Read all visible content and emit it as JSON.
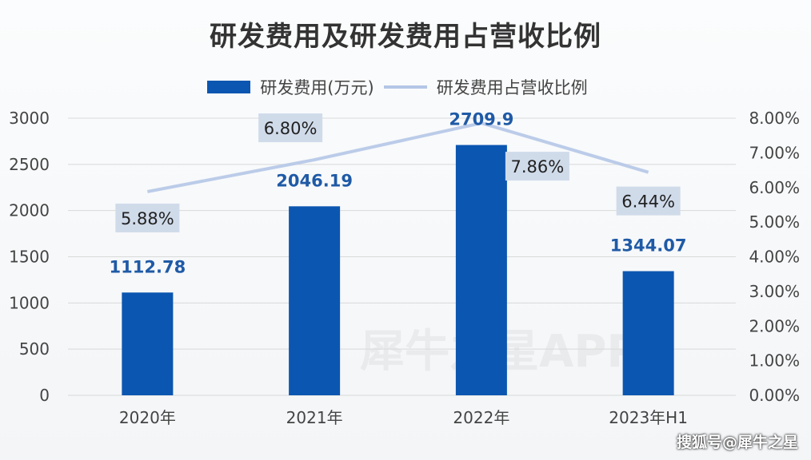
{
  "chart_data": {
    "type": "bar",
    "title": "研发费用及研发费用占营收比例",
    "categories": [
      "2020年",
      "2021年",
      "2022年",
      "2023年H1"
    ],
    "series": [
      {
        "name": "研发费用(万元)",
        "type": "bar",
        "axis": "left",
        "values": [
          1112.78,
          2046.19,
          2709.9,
          1344.07
        ],
        "labels": [
          "1112.78",
          "2046.19",
          "2709.9",
          "1344.07"
        ],
        "color": "#0b56b0"
      },
      {
        "name": "研发费用占营收比例",
        "type": "line",
        "axis": "right",
        "values": [
          5.88,
          6.8,
          7.86,
          6.44
        ],
        "labels": [
          "5.88%",
          "6.80%",
          "7.86%",
          "6.44%"
        ],
        "color": "#b4c6e7"
      }
    ],
    "ylim": [
      0,
      3000
    ],
    "yticks": [
      "0",
      "500",
      "1000",
      "1500",
      "2000",
      "2500",
      "3000"
    ],
    "y2lim": [
      0,
      8
    ],
    "y2ticks": [
      "0.00%",
      "1.00%",
      "2.00%",
      "3.00%",
      "4.00%",
      "5.00%",
      "6.00%",
      "7.00%",
      "8.00%"
    ],
    "grid": true,
    "legend": "top"
  },
  "watermark": "搜狐号@犀牛之星",
  "watermark_center": "犀牛之星APP"
}
